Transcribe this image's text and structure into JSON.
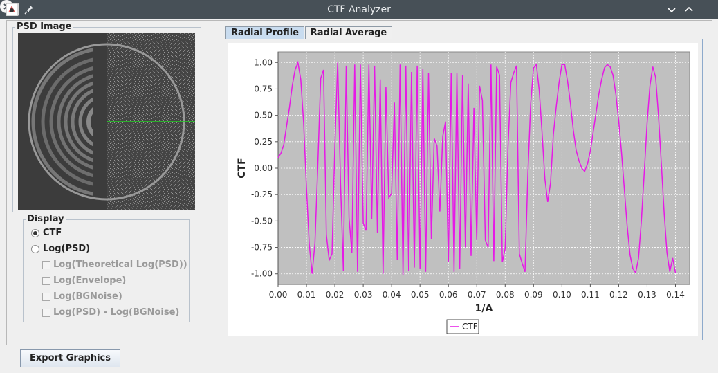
{
  "window": {
    "title": "CTF Analyzer"
  },
  "icons": {
    "app": "app-icon",
    "pin": "pin-icon",
    "minimize": "chevron-down-icon",
    "maximize": "chevron-up-icon",
    "close": "close-icon"
  },
  "psd_panel": {
    "title": "PSD Image"
  },
  "display_panel": {
    "title": "Display",
    "options": [
      {
        "label": "CTF",
        "type": "radio",
        "selected": true,
        "enabled": true
      },
      {
        "label": "Log(PSD)",
        "type": "radio",
        "selected": false,
        "enabled": true
      },
      {
        "label": "Log(Theoretical Log(PSD))",
        "type": "checkbox",
        "checked": false,
        "enabled": false
      },
      {
        "label": "Log(Envelope)",
        "type": "checkbox",
        "checked": false,
        "enabled": false
      },
      {
        "label": "Log(BGNoise)",
        "type": "checkbox",
        "checked": false,
        "enabled": false
      },
      {
        "label": "Log(PSD) - Log(BGNoise)",
        "type": "checkbox",
        "checked": false,
        "enabled": false
      }
    ]
  },
  "tabs": [
    {
      "label": "Radial Profile",
      "selected": true
    },
    {
      "label": "Radial Average",
      "selected": false
    }
  ],
  "export_button": {
    "label": "Export Graphics"
  },
  "colors": {
    "series": "#e619e6",
    "plot_background": "#c0c0c0",
    "titlebar": "#475057",
    "selected_tab": "#c9dcef",
    "psd_line": "#22cc22"
  },
  "chart_data": {
    "type": "line",
    "xlabel": "1/A",
    "ylabel": "CTF",
    "xlim": [
      0.0,
      0.145
    ],
    "ylim": [
      -1.1,
      1.1
    ],
    "x_ticks": [
      "0.00",
      "0.01",
      "0.02",
      "0.03",
      "0.04",
      "0.05",
      "0.06",
      "0.07",
      "0.08",
      "0.09",
      "0.10",
      "0.11",
      "0.12",
      "0.13",
      "0.14"
    ],
    "y_ticks": [
      "1.00",
      "0.75",
      "0.50",
      "0.25",
      "0.00",
      "-0.25",
      "-0.50",
      "-0.75",
      "-1.00"
    ],
    "grid": true,
    "legend": "bottom-center",
    "series": [
      {
        "name": "CTF",
        "color": "#e619e6",
        "x": [
          0.0,
          0.001,
          0.002,
          0.003,
          0.004,
          0.005,
          0.006,
          0.007,
          0.008,
          0.009,
          0.01,
          0.011,
          0.012,
          0.013,
          0.014,
          0.015,
          0.016,
          0.017,
          0.018,
          0.019,
          0.02,
          0.021,
          0.022,
          0.023,
          0.024,
          0.025,
          0.026,
          0.027,
          0.028,
          0.029,
          0.03,
          0.031,
          0.032,
          0.033,
          0.034,
          0.035,
          0.036,
          0.037,
          0.038,
          0.039,
          0.04,
          0.041,
          0.042,
          0.043,
          0.044,
          0.045,
          0.046,
          0.047,
          0.048,
          0.049,
          0.05,
          0.051,
          0.052,
          0.053,
          0.054,
          0.055,
          0.056,
          0.057,
          0.058,
          0.059,
          0.06,
          0.061,
          0.062,
          0.063,
          0.064,
          0.065,
          0.066,
          0.067,
          0.068,
          0.069,
          0.07,
          0.071,
          0.072,
          0.073,
          0.074,
          0.075,
          0.076,
          0.077,
          0.078,
          0.079,
          0.08,
          0.081,
          0.082,
          0.083,
          0.084,
          0.085,
          0.086,
          0.087,
          0.088,
          0.089,
          0.09,
          0.091,
          0.092,
          0.093,
          0.094,
          0.095,
          0.096,
          0.097,
          0.098,
          0.099,
          0.1,
          0.101,
          0.102,
          0.103,
          0.104,
          0.105,
          0.106,
          0.107,
          0.108,
          0.109,
          0.11,
          0.111,
          0.112,
          0.113,
          0.114,
          0.115,
          0.116,
          0.117,
          0.118,
          0.119,
          0.12,
          0.121,
          0.122,
          0.123,
          0.124,
          0.125,
          0.126,
          0.127,
          0.128,
          0.129,
          0.13,
          0.131,
          0.132,
          0.133,
          0.134,
          0.135,
          0.136,
          0.137,
          0.138,
          0.139,
          0.14
        ],
        "values": [
          0.1,
          0.14,
          0.22,
          0.4,
          0.57,
          0.78,
          0.93,
          1.0,
          0.84,
          0.43,
          -0.18,
          -0.72,
          -1.0,
          -0.71,
          0.02,
          0.85,
          0.93,
          -0.63,
          -0.87,
          -0.81,
          0.21,
          1.0,
          -0.14,
          -0.97,
          0.97,
          -0.47,
          -0.8,
          0.98,
          -0.98,
          0.98,
          -0.52,
          -0.59,
          0.98,
          -0.48,
          0.97,
          -0.61,
          0.84,
          -1.0,
          0.77,
          -0.28,
          -0.24,
          0.62,
          -0.87,
          0.98,
          -1.01,
          0.97,
          -0.97,
          0.91,
          -0.94,
          0.97,
          -0.95,
          0.94,
          -0.98,
          0.9,
          -0.67,
          0.28,
          0.21,
          -0.41,
          0.3,
          0.44,
          -0.89,
          0.9,
          -0.98,
          0.9,
          -0.95,
          0.88,
          -0.75,
          0.8,
          -0.83,
          0.57,
          -0.68,
          0.78,
          0.64,
          -0.68,
          -0.75,
          0.98,
          -0.88,
          0.96,
          0.88,
          -0.89,
          -0.76,
          0.2,
          0.81,
          0.9,
          0.97,
          -0.81,
          -0.9,
          -0.98,
          -0.05,
          0.61,
          0.95,
          0.98,
          0.74,
          0.34,
          -0.1,
          -0.32,
          -0.14,
          0.32,
          0.58,
          0.81,
          0.98,
          0.98,
          0.82,
          0.61,
          0.36,
          0.17,
          0.07,
          0.0,
          -0.03,
          0.04,
          0.16,
          0.34,
          0.52,
          0.7,
          0.84,
          0.95,
          0.98,
          0.96,
          0.88,
          0.7,
          0.45,
          0.15,
          -0.2,
          -0.55,
          -0.82,
          -0.95,
          -0.99,
          -0.85,
          -0.5,
          -0.05,
          0.42,
          0.78,
          0.96,
          0.86,
          0.5,
          0.05,
          -0.42,
          -0.8,
          -0.98,
          -0.85,
          -0.99
        ]
      }
    ]
  }
}
